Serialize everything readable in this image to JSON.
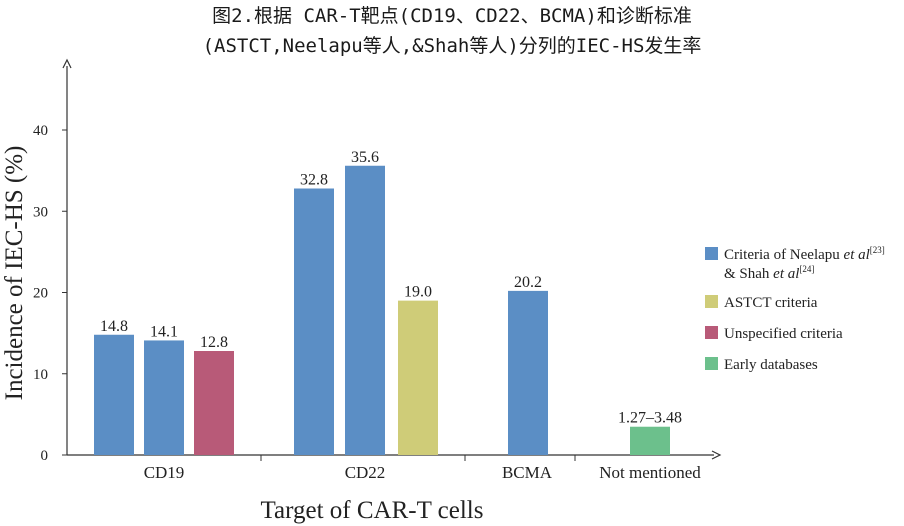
{
  "chart_data": {
    "type": "bar",
    "title_line1": "图2.根据 CAR-T靶点(CD19、CD22、BCMA)和诊断标准",
    "title_line2": "(ASTCT,Neelapu等人,&Shah等人)分列的IEC-HS发生率",
    "xlabel": "Target of CAR-T cells",
    "ylabel": "Incidence of IEC-HS (%)",
    "ylim": [
      0,
      40
    ],
    "yticks": [
      "0",
      "10",
      "20",
      "30",
      "40"
    ],
    "categories": [
      "CD19",
      "CD22",
      "BCMA",
      "Not mentioned"
    ],
    "bars": [
      {
        "category": "CD19",
        "series": "neelapu",
        "value": 14.8,
        "label": "14.8"
      },
      {
        "category": "CD19",
        "series": "neelapu",
        "value": 14.1,
        "label": "14.1"
      },
      {
        "category": "CD19",
        "series": "unspecified",
        "value": 12.8,
        "label": "12.8"
      },
      {
        "category": "CD22",
        "series": "neelapu",
        "value": 32.8,
        "label": "32.8"
      },
      {
        "category": "CD22",
        "series": "neelapu",
        "value": 35.6,
        "label": "35.6"
      },
      {
        "category": "CD22",
        "series": "astct",
        "value": 19.0,
        "label": "19.0"
      },
      {
        "category": "BCMA",
        "series": "neelapu",
        "value": 20.2,
        "label": "20.2"
      },
      {
        "category": "Not mentioned",
        "series": "early",
        "value": 3.48,
        "label": "1.27–3.48"
      }
    ],
    "legend": {
      "placement": "right",
      "items": [
        {
          "key": "neelapu",
          "text": "Criteria of Neelapu ",
          "italic": "et al",
          "sup": "[23]",
          "line2": "& Shah ",
          "italic2": "et al",
          "sup2": "[24]",
          "color": "#5b8ec5"
        },
        {
          "key": "astct",
          "text": "ASTCT criteria",
          "color": "#cfcc78"
        },
        {
          "key": "unspecified",
          "text": "Unspecified criteria",
          "color": "#b85a78"
        },
        {
          "key": "early",
          "text": "Early databases",
          "color": "#6cc08c"
        }
      ]
    },
    "grid": false
  }
}
